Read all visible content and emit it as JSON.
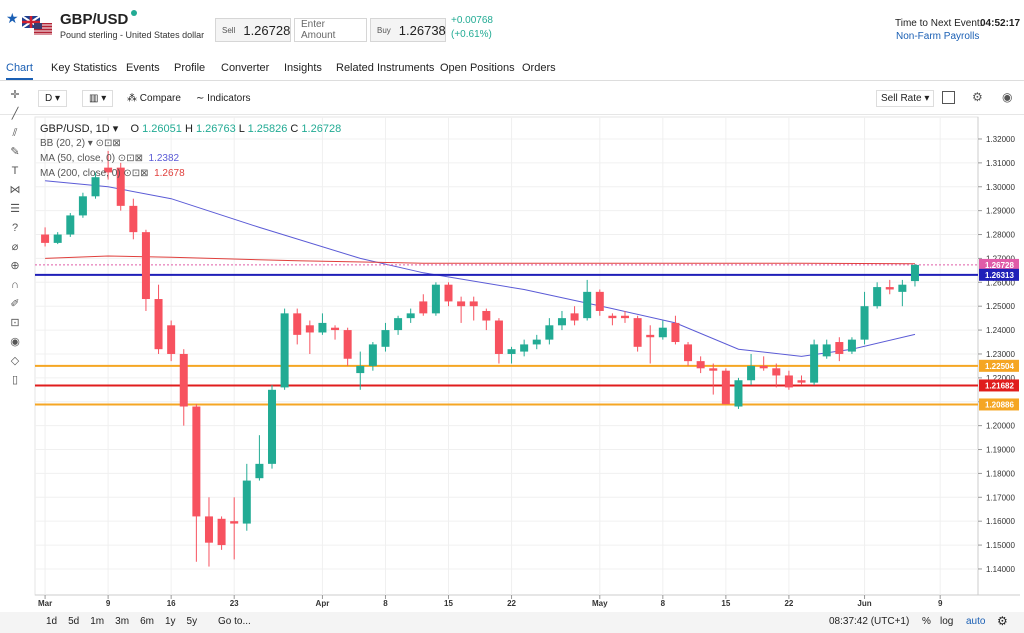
{
  "header": {
    "symbol": "GBP/USD",
    "description": "Pound sterling - United States dollar",
    "sell_label": "Sell",
    "sell": 1.26728,
    "amount_placeholder": "Enter Amount",
    "buy_label": "Buy",
    "buy": 1.26738,
    "change": "+0.00768",
    "change_pct": "(+0.61%)",
    "event_label": "Time to Next Event:",
    "event_time": "04:52:17",
    "event_name": "Non-Farm Payrolls"
  },
  "tabs": [
    "Chart",
    "Key Statistics",
    "Events",
    "Profile",
    "Converter",
    "Insights",
    "Related Instruments",
    "Open Positions",
    "Orders"
  ],
  "toolbar": {
    "interval": "D",
    "compare": "Compare",
    "indicators": "Indicators",
    "sell_rate": "Sell Rate"
  },
  "chart": {
    "type": "candlestick",
    "title": "GBP/USD, 1D",
    "o_label": "O",
    "h_label": "H",
    "l_label": "L",
    "c_label": "C",
    "bb_label": "BB (20, 2)",
    "up_color": "#22ab94",
    "down_color": "#f7525f",
    "xlim": [
      -0.8,
      74
    ],
    "ylim": [
      1.1291,
      1.3292
    ],
    "xticks": [
      {
        "value": 0,
        "label": "Mar"
      },
      {
        "value": 5,
        "label": "9"
      },
      {
        "value": 10,
        "label": "16"
      },
      {
        "value": 15,
        "label": "23"
      },
      {
        "value": 22,
        "label": "Apr"
      },
      {
        "value": 27,
        "label": "8"
      },
      {
        "value": 32,
        "label": "15"
      },
      {
        "value": 37,
        "label": "22"
      },
      {
        "value": 44,
        "label": "May"
      },
      {
        "value": 49,
        "label": "8"
      },
      {
        "value": 54,
        "label": "15"
      },
      {
        "value": 59,
        "label": "22"
      },
      {
        "value": 65,
        "label": "Jun"
      },
      {
        "value": 71,
        "label": "9"
      }
    ],
    "yticks": [
      {
        "value": 1.14,
        "label": "1.14000"
      },
      {
        "value": 1.15,
        "label": "1.15000"
      },
      {
        "value": 1.16,
        "label": "1.16000"
      },
      {
        "value": 1.17,
        "label": "1.17000"
      },
      {
        "value": 1.18,
        "label": "1.18000"
      },
      {
        "value": 1.19,
        "label": "1.19000"
      },
      {
        "value": 1.2,
        "label": "1.20000"
      },
      {
        "value": 1.21,
        "label": "1.21000"
      },
      {
        "value": 1.22,
        "label": "1.22000"
      },
      {
        "value": 1.23,
        "label": "1.23000"
      },
      {
        "value": 1.24,
        "label": "1.24000"
      },
      {
        "value": 1.25,
        "label": "1.25000"
      },
      {
        "value": 1.26,
        "label": "1.26000"
      },
      {
        "value": 1.27,
        "label": "1.27000"
      },
      {
        "value": 1.28,
        "label": "1.28000"
      },
      {
        "value": 1.29,
        "label": "1.29000"
      },
      {
        "value": 1.3,
        "label": "1.30000"
      },
      {
        "value": 1.31,
        "label": "1.31000"
      },
      {
        "value": 1.32,
        "label": "1.32000"
      }
    ],
    "candles": {
      "open": [
        1.28,
        1.2765,
        1.28,
        1.288,
        1.296,
        1.308,
        1.308,
        1.292,
        1.281,
        1.253,
        1.242,
        1.23,
        1.208,
        1.162,
        1.161,
        1.16,
        1.159,
        1.178,
        1.184,
        1.216,
        1.247,
        1.242,
        1.239,
        1.241,
        1.24,
        1.222,
        1.225,
        1.233,
        1.24,
        1.245,
        1.252,
        1.247,
        1.259,
        1.252,
        1.252,
        1.248,
        1.244,
        1.23,
        1.231,
        1.234,
        1.236,
        1.242,
        1.247,
        1.245,
        1.256,
        1.246,
        1.246,
        1.245,
        1.238,
        1.237,
        1.243,
        1.234,
        1.227,
        1.224,
        1.223,
        1.208,
        1.219,
        1.225,
        1.224,
        1.221,
        1.219,
        1.218,
        1.229,
        1.235,
        1.231,
        1.236,
        1.25,
        1.258,
        1.256,
        1.26051
      ],
      "high": [
        1.283,
        1.281,
        1.289,
        1.2975,
        1.306,
        1.315,
        1.31,
        1.295,
        1.282,
        1.259,
        1.244,
        1.232,
        1.209,
        1.17,
        1.162,
        1.17,
        1.184,
        1.196,
        1.217,
        1.249,
        1.249,
        1.244,
        1.247,
        1.242,
        1.241,
        1.231,
        1.235,
        1.243,
        1.246,
        1.249,
        1.255,
        1.26,
        1.26,
        1.254,
        1.254,
        1.249,
        1.245,
        1.233,
        1.236,
        1.238,
        1.245,
        1.248,
        1.25,
        1.261,
        1.257,
        1.247,
        1.248,
        1.246,
        1.242,
        1.244,
        1.246,
        1.235,
        1.229,
        1.226,
        1.224,
        1.22,
        1.23,
        1.229,
        1.226,
        1.223,
        1.221,
        1.236,
        1.236,
        1.237,
        1.237,
        1.256,
        1.26,
        1.261,
        1.261,
        1.26763
      ],
      "low": [
        1.275,
        1.276,
        1.279,
        1.287,
        1.295,
        1.303,
        1.29,
        1.278,
        1.248,
        1.23,
        1.227,
        1.2,
        1.143,
        1.141,
        1.148,
        1.144,
        1.156,
        1.177,
        1.182,
        1.215,
        1.234,
        1.23,
        1.238,
        1.236,
        1.225,
        1.215,
        1.223,
        1.231,
        1.238,
        1.243,
        1.246,
        1.246,
        1.25,
        1.243,
        1.244,
        1.24,
        1.226,
        1.226,
        1.229,
        1.232,
        1.234,
        1.24,
        1.242,
        1.244,
        1.246,
        1.242,
        1.243,
        1.231,
        1.226,
        1.236,
        1.234,
        1.225,
        1.222,
        1.213,
        1.209,
        1.207,
        1.217,
        1.223,
        1.216,
        1.215,
        1.217,
        1.217,
        1.228,
        1.227,
        1.23,
        1.234,
        1.249,
        1.255,
        1.25,
        1.25826
      ],
      "close": [
        1.2765,
        1.28,
        1.288,
        1.296,
        1.304,
        1.306,
        1.292,
        1.281,
        1.253,
        1.232,
        1.23,
        1.208,
        1.162,
        1.151,
        1.15,
        1.159,
        1.177,
        1.184,
        1.215,
        1.247,
        1.238,
        1.239,
        1.243,
        1.24,
        1.228,
        1.225,
        1.234,
        1.24,
        1.245,
        1.247,
        1.247,
        1.259,
        1.252,
        1.25,
        1.25,
        1.244,
        1.23,
        1.232,
        1.234,
        1.236,
        1.242,
        1.245,
        1.244,
        1.256,
        1.248,
        1.245,
        1.245,
        1.233,
        1.237,
        1.241,
        1.235,
        1.227,
        1.224,
        1.223,
        1.209,
        1.219,
        1.225,
        1.224,
        1.221,
        1.216,
        1.218,
        1.234,
        1.234,
        1.23,
        1.236,
        1.25,
        1.258,
        1.257,
        1.259,
        1.26728
      ]
    },
    "ma": [
      {
        "name": "MA (50, close, 0)",
        "color": "#5b5bd6",
        "x": [
          0,
          5,
          10,
          17,
          25,
          30,
          38,
          45,
          50,
          55,
          60,
          64,
          69
        ],
        "values": [
          1.3025,
          1.3,
          1.295,
          1.283,
          1.27,
          1.264,
          1.257,
          1.249,
          1.243,
          1.232,
          1.229,
          1.232,
          1.2382
        ]
      },
      {
        "name": "MA (200, close, 0)",
        "color": "#e0403d",
        "x": [
          0,
          5,
          10,
          20,
          30,
          40,
          50,
          60,
          69
        ],
        "values": [
          1.27,
          1.271,
          1.2705,
          1.269,
          1.268,
          1.268,
          1.268,
          1.268,
          1.2678
        ]
      }
    ],
    "levels": [
      {
        "value": 1.26728,
        "color": "#e05ca8"
      },
      {
        "value": 1.26313,
        "color": "#1f1fb8"
      },
      {
        "value": 1.22504,
        "color": "#f5a623"
      },
      {
        "value": 1.21682,
        "color": "#e01d1d"
      },
      {
        "value": 1.20886,
        "color": "#f5a623"
      }
    ]
  },
  "footer": {
    "ranges": [
      "1d",
      "5d",
      "1m",
      "3m",
      "6m",
      "1y",
      "5y"
    ],
    "goto": "Go to...",
    "time": "08:37:42 (UTC+1)",
    "percent": "%",
    "log": "log",
    "auto": "auto"
  }
}
